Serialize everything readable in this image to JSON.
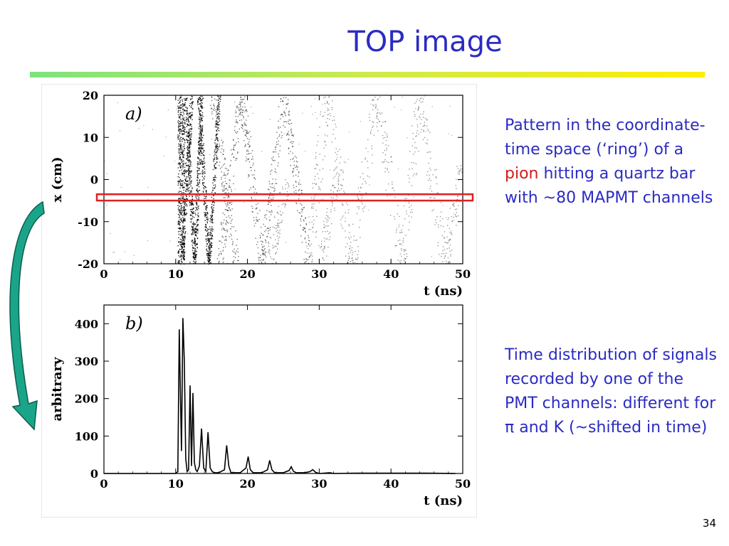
{
  "slide": {
    "title": "TOP image",
    "page_number": "34",
    "description_1": {
      "before": "Pattern in the coordinate-time space (‘ring’) of a ",
      "highlight": "pion",
      "after": " hitting a quartz bar with ~80 MAPMT channels"
    },
    "description_2": "Time distribution of signals recorded by one of the PMT channels: different for π and K (~shifted in time)",
    "colors": {
      "title": "#2b2bc2",
      "text": "#2b2bc2",
      "highlight": "#d51a1a",
      "box": "#e02020",
      "arrow": "#1aa58a"
    }
  },
  "chart_data": [
    {
      "type": "scatter",
      "panel_label": "a)",
      "xlabel": "t (ns)",
      "ylabel": "x (cm)",
      "xlim": [
        0,
        50
      ],
      "ylim": [
        -20,
        20
      ],
      "xticks": [
        0,
        10,
        20,
        30,
        40,
        50
      ],
      "yticks": [
        -20,
        -10,
        0,
        10,
        20
      ],
      "highlight_band": {
        "y_range": [
          -5,
          -3.5
        ]
      },
      "pattern_bands": [
        {
          "x": [
            10.5,
            10.5
          ],
          "y": [
            -20,
            20
          ],
          "density": "high"
        },
        {
          "x": [
            11.0,
            11.0
          ],
          "y": [
            -20,
            20
          ],
          "density": "high"
        },
        {
          "x": [
            10.8,
            12.2
          ],
          "y": [
            -20,
            20
          ],
          "density": "high"
        },
        {
          "x": [
            11.3,
            12.6
          ],
          "y": [
            20,
            -20
          ],
          "density": "high"
        },
        {
          "x": [
            12.6,
            13.6
          ],
          "y": [
            -20,
            20
          ],
          "density": "high"
        },
        {
          "x": [
            13.2,
            14.6
          ],
          "y": [
            20,
            -20
          ],
          "density": "high"
        },
        {
          "x": [
            14.6,
            16.0
          ],
          "y": [
            -20,
            20
          ],
          "density": "high"
        },
        {
          "x": [
            15.0,
            18.5
          ],
          "y": [
            20,
            -20
          ],
          "density": "medium"
        },
        {
          "x": [
            16.0,
            19.2
          ],
          "y": [
            -20,
            20
          ],
          "density": "medium"
        },
        {
          "x": [
            19.2,
            22.0
          ],
          "y": [
            20,
            -20
          ],
          "density": "medium"
        },
        {
          "x": [
            22.0,
            25.0
          ],
          "y": [
            -20,
            20
          ],
          "density": "medium"
        },
        {
          "x": [
            25.0,
            28.5
          ],
          "y": [
            20,
            -20
          ],
          "density": "medium"
        },
        {
          "x": [
            28.5,
            31.0
          ],
          "y": [
            -20,
            20
          ],
          "density": "low"
        },
        {
          "x": [
            31.0,
            34.5
          ],
          "y": [
            20,
            -20
          ],
          "density": "low"
        },
        {
          "x": [
            34.5,
            38.0
          ],
          "y": [
            -20,
            20
          ],
          "density": "low"
        },
        {
          "x": [
            38.0,
            41.5
          ],
          "y": [
            20,
            -20
          ],
          "density": "low"
        },
        {
          "x": [
            41.5,
            44.0
          ],
          "y": [
            -20,
            20
          ],
          "density": "low"
        },
        {
          "x": [
            44.0,
            47.5
          ],
          "y": [
            20,
            -20
          ],
          "density": "low"
        },
        {
          "x": [
            47.5,
            50.0
          ],
          "y": [
            -20,
            5
          ],
          "density": "low"
        },
        {
          "x": [
            23.0,
            25.5
          ],
          "y": [
            -20,
            0
          ],
          "density": "low"
        },
        {
          "x": [
            30.0,
            33.0
          ],
          "y": [
            -20,
            5
          ],
          "density": "low"
        }
      ]
    },
    {
      "type": "line",
      "panel_label": "b)",
      "xlabel": "t (ns)",
      "ylabel": "arbitrary",
      "xlim": [
        0,
        50
      ],
      "ylim": [
        0,
        450
      ],
      "xticks": [
        0,
        10,
        20,
        30,
        40,
        50
      ],
      "yticks": [
        0,
        100,
        200,
        300,
        400
      ],
      "x": [
        0,
        10.0,
        10.3,
        10.5,
        10.8,
        11.0,
        11.2,
        11.4,
        11.6,
        11.8,
        12.0,
        12.2,
        12.4,
        12.6,
        12.8,
        13.0,
        13.3,
        13.6,
        13.9,
        14.2,
        14.5,
        14.8,
        15.1,
        15.4,
        16.0,
        16.8,
        17.1,
        17.4,
        17.7,
        18.0,
        19.0,
        19.8,
        20.1,
        20.4,
        20.8,
        22.0,
        22.8,
        23.1,
        23.4,
        23.8,
        25.0,
        25.8,
        26.1,
        26.4,
        26.8,
        28.0,
        28.7,
        29.1,
        29.5,
        30.0,
        31.5,
        32.0,
        35.0,
        40.0,
        45.0,
        49.0
      ],
      "values": [
        0,
        0,
        5,
        385,
        60,
        415,
        300,
        40,
        5,
        10,
        235,
        20,
        215,
        30,
        10,
        5,
        20,
        120,
        15,
        5,
        110,
        15,
        5,
        2,
        2,
        10,
        75,
        20,
        2,
        2,
        2,
        15,
        45,
        10,
        2,
        2,
        10,
        35,
        10,
        2,
        2,
        8,
        18,
        6,
        2,
        2,
        5,
        10,
        3,
        0,
        2,
        0,
        1,
        1,
        1,
        0
      ]
    }
  ]
}
